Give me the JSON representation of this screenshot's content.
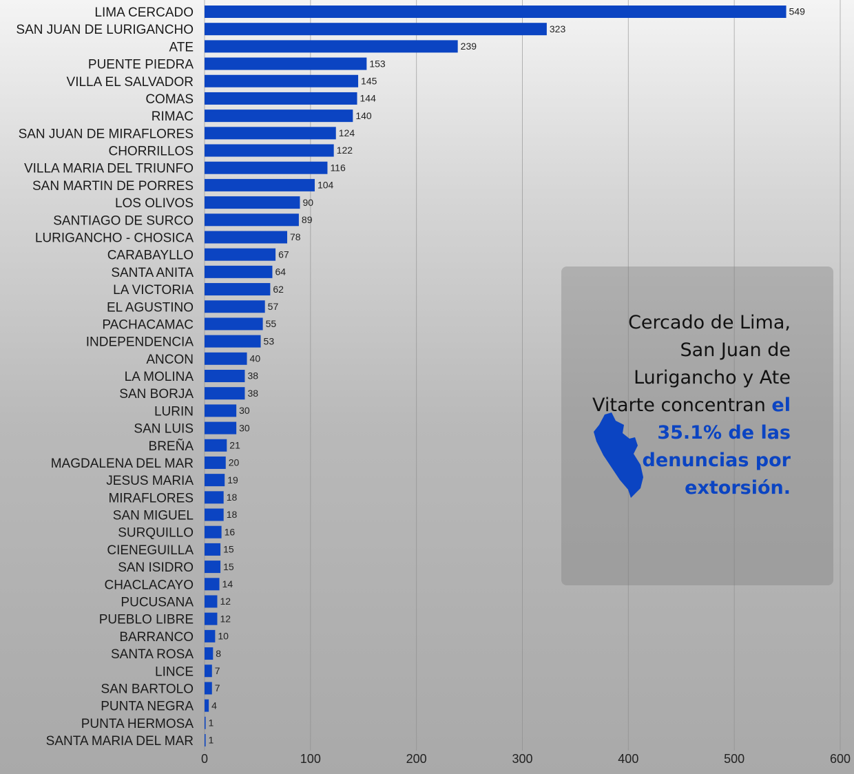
{
  "chart_data": {
    "type": "bar",
    "orientation": "horizontal",
    "categories": [
      "LIMA CERCADO",
      "SAN JUAN DE LURIGANCHO",
      "ATE",
      "PUENTE PIEDRA",
      "VILLA EL SALVADOR",
      "COMAS",
      "RIMAC",
      "SAN JUAN DE MIRAFLORES",
      "CHORRILLOS",
      "VILLA MARIA DEL TRIUNFO",
      "SAN MARTIN DE PORRES",
      "LOS OLIVOS",
      "SANTIAGO DE SURCO",
      "LURIGANCHO - CHOSICA",
      "CARABAYLLO",
      "SANTA ANITA",
      "LA VICTORIA",
      "EL AGUSTINO",
      "PACHACAMAC",
      "INDEPENDENCIA",
      "ANCON",
      "LA MOLINA",
      "SAN BORJA",
      "LURIN",
      "SAN LUIS",
      "BREÑA",
      "MAGDALENA DEL MAR",
      "JESUS MARIA",
      "MIRAFLORES",
      "SAN MIGUEL",
      "SURQUILLO",
      "CIENEGUILLA",
      "SAN ISIDRO",
      "CHACLACAYO",
      "PUCUSANA",
      "PUEBLO LIBRE",
      "BARRANCO",
      "SANTA ROSA",
      "LINCE",
      "SAN BARTOLO",
      "PUNTA NEGRA",
      "PUNTA HERMOSA",
      "SANTA MARIA DEL MAR"
    ],
    "values": [
      549,
      323,
      239,
      153,
      145,
      144,
      140,
      124,
      122,
      116,
      104,
      90,
      89,
      78,
      67,
      64,
      62,
      57,
      55,
      53,
      40,
      38,
      38,
      30,
      30,
      21,
      20,
      19,
      18,
      18,
      16,
      15,
      15,
      14,
      12,
      12,
      10,
      8,
      7,
      7,
      4,
      1,
      1
    ],
    "color": "#0b44c2",
    "xlim": [
      0,
      600
    ],
    "xticks": [
      0,
      100,
      200,
      300,
      400,
      500,
      600
    ],
    "grid": true,
    "annotation": {
      "text": "Cercado de Lima, San Juan de Lurigancho y Ate Vitarte concentran",
      "highlight": "el 35.1% de las denuncias por extorsión."
    }
  }
}
